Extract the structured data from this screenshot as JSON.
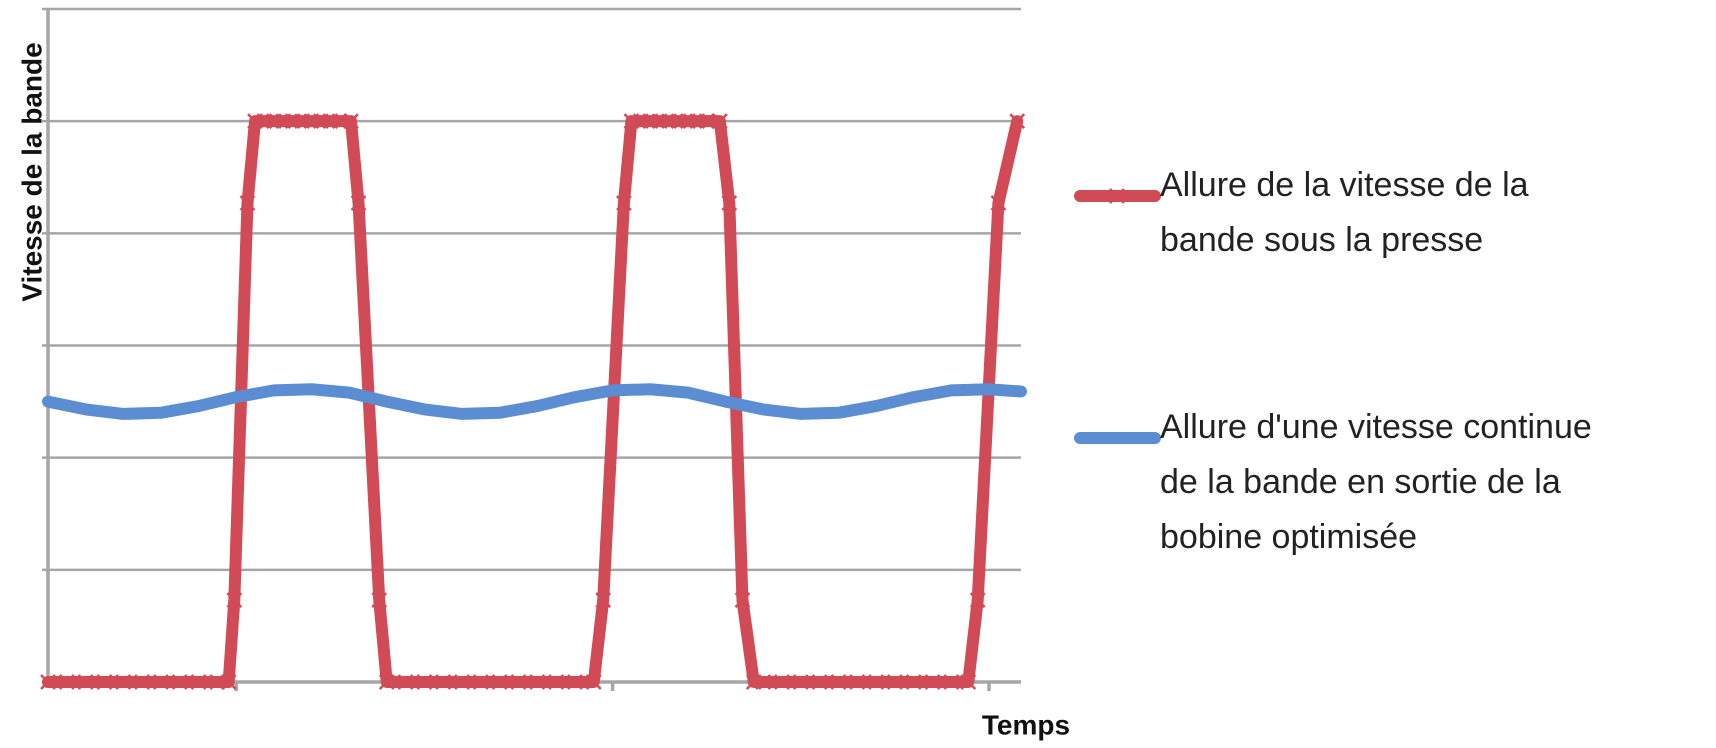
{
  "chart_data": {
    "type": "line",
    "y_label": "Vitesse de la bande",
    "x_label": "Temps",
    "xlim": [
      0,
      5.17
    ],
    "xticks": [
      1,
      3,
      5
    ],
    "ylim": [
      0,
      6
    ],
    "yticks": [
      0,
      1,
      2,
      3,
      4,
      5,
      6
    ],
    "grid": true,
    "legend": "right",
    "series": [
      {
        "name": "Allure de la vitesse de la bande sous la presse",
        "color": "#d14b56",
        "marker": "x",
        "x": [
          0,
          0.1,
          0.2,
          0.3,
          0.4,
          0.5,
          0.6,
          0.7,
          0.8,
          0.9,
          0.96,
          0.99,
          1.06,
          1.1,
          1.15,
          1.2,
          1.25,
          1.3,
          1.35,
          1.4,
          1.45,
          1.5,
          1.55,
          1.61,
          1.65,
          1.76,
          1.8,
          1.9,
          2.0,
          2.1,
          2.2,
          2.3,
          2.4,
          2.5,
          2.6,
          2.7,
          2.8,
          2.9,
          2.95,
          3.06,
          3.1,
          3.15,
          3.2,
          3.25,
          3.3,
          3.35,
          3.4,
          3.45,
          3.5,
          3.57,
          3.62,
          3.69,
          3.75,
          3.8,
          3.9,
          4.0,
          4.1,
          4.2,
          4.3,
          4.4,
          4.5,
          4.6,
          4.7,
          4.8,
          4.89,
          4.94,
          5.05,
          5.15
        ],
        "values": [
          0,
          0,
          0,
          0,
          0,
          0,
          0,
          0,
          0,
          0,
          0,
          0.73,
          4.27,
          5,
          5,
          5,
          5,
          5,
          5,
          5,
          5,
          5,
          5,
          5,
          4.27,
          0.73,
          0,
          0,
          0,
          0,
          0,
          0,
          0,
          0,
          0,
          0,
          0,
          0,
          0.73,
          4.27,
          5,
          5,
          5,
          5,
          5,
          5,
          5,
          5,
          5,
          5,
          4.27,
          0.73,
          0,
          0,
          0,
          0,
          0,
          0,
          0,
          0,
          0,
          0,
          0,
          0,
          0,
          0.73,
          4.27,
          5
        ]
      },
      {
        "name": "Allure d'une vitesse continue de la bande en sortie de la bobine optimisée",
        "color": "#5b8dd3",
        "marker": "none",
        "x": [
          0,
          0.2,
          0.4,
          0.6,
          0.8,
          1.0,
          1.2,
          1.4,
          1.6,
          1.8,
          2.0,
          2.2,
          2.4,
          2.6,
          2.8,
          3.0,
          3.2,
          3.4,
          3.6,
          3.8,
          4.0,
          4.2,
          4.4,
          4.6,
          4.8,
          5.0,
          5.17
        ],
        "values": [
          2.5,
          2.43,
          2.39,
          2.4,
          2.46,
          2.54,
          2.6,
          2.61,
          2.58,
          2.5,
          2.43,
          2.39,
          2.4,
          2.46,
          2.54,
          2.6,
          2.61,
          2.58,
          2.5,
          2.43,
          2.39,
          2.4,
          2.46,
          2.54,
          2.6,
          2.61,
          2.59
        ]
      }
    ]
  }
}
